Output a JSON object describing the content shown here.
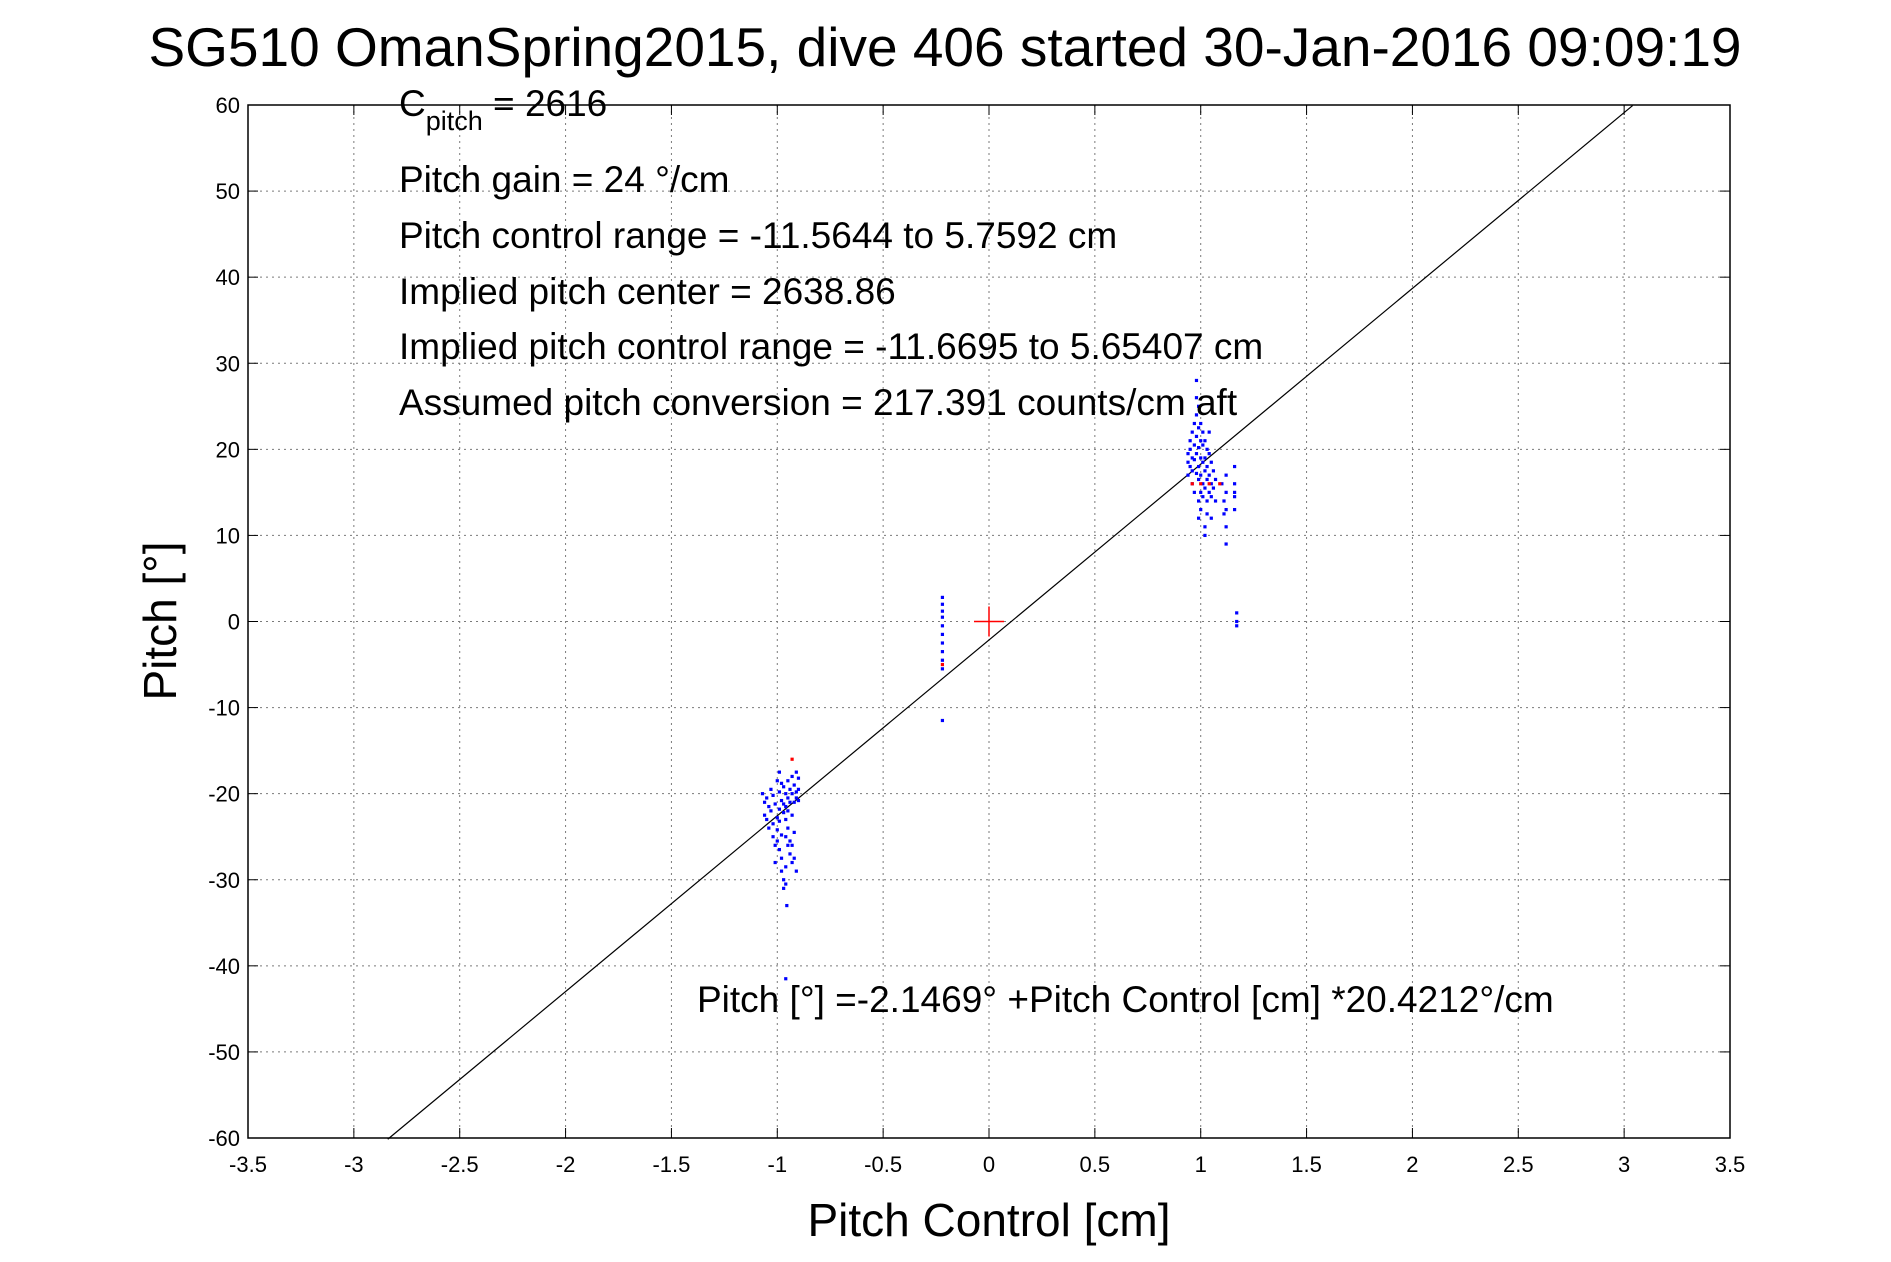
{
  "chart_data": {
    "type": "scatter",
    "title": "SG510 OmanSpring2015, dive 406 started 30-Jan-2016 09:09:19",
    "xlabel": "Pitch Control [cm]",
    "ylabel": "Pitch [°]",
    "xlim": [
      -3.5,
      3.5
    ],
    "ylim": [
      -60,
      60
    ],
    "xticks": [
      -3.5,
      -3,
      -2.5,
      -2,
      -1.5,
      -1,
      -0.5,
      0,
      0.5,
      1,
      1.5,
      2,
      2.5,
      3,
      3.5
    ],
    "xtick_labels": [
      "-3.5",
      "-3",
      "-2.5",
      "-2",
      "-1.5",
      "-1",
      "-0.5",
      "0",
      "0.5",
      "1",
      "1.5",
      "2",
      "2.5",
      "3",
      "3.5"
    ],
    "yticks": [
      -60,
      -50,
      -40,
      -30,
      -20,
      -10,
      0,
      10,
      20,
      30,
      40,
      50,
      60
    ],
    "ytick_labels": [
      "-60",
      "-50",
      "-40",
      "-30",
      "-20",
      "-10",
      "0",
      "10",
      "20",
      "30",
      "40",
      "50",
      "60"
    ],
    "grid": true,
    "annotations": {
      "cpitch": {
        "base": "C",
        "sub": "pitch",
        "rest": " = 2616"
      },
      "lines": [
        "Pitch gain = 24 °/cm",
        "Pitch control range = -11.5644 to 5.7592 cm",
        "Implied pitch center = 2638.86",
        "Implied pitch control range = -11.6695 to 5.65407 cm",
        "Assumed pitch conversion = 217.391 counts/cm aft"
      ],
      "fit_label": "Pitch [°] =-2.1469° +Pitch Control [cm] *20.4212°/cm"
    },
    "fit_line": {
      "intercept": -2.1469,
      "slope": 20.4212,
      "x_range": [
        -2.84,
        3.04
      ],
      "color": "#000000"
    },
    "center_marker": {
      "x": 0,
      "y": 0,
      "color": "#ff0000",
      "marker": "+"
    },
    "series": [
      {
        "color": "#0000ff",
        "marker": "dot",
        "points": [
          [
            -1.07,
            -20
          ],
          [
            -1.06,
            -21
          ],
          [
            -1.06,
            -22.5
          ],
          [
            -1.05,
            -23
          ],
          [
            -1.05,
            -20.5
          ],
          [
            -1.04,
            -21.5
          ],
          [
            -1.04,
            -24
          ],
          [
            -1.03,
            -19.5
          ],
          [
            -1.03,
            -22
          ],
          [
            -1.02,
            -23.5
          ],
          [
            -1.02,
            -25
          ],
          [
            -1.02,
            -20.2
          ],
          [
            -1.01,
            -21.2
          ],
          [
            -1.01,
            -26
          ],
          [
            -1.01,
            -28
          ],
          [
            -1.0,
            -18.5
          ],
          [
            -1.0,
            -22.8
          ],
          [
            -1.0,
            -25.5
          ],
          [
            -1.0,
            -24.2
          ],
          [
            -0.99,
            -17.5
          ],
          [
            -0.99,
            -19.8
          ],
          [
            -0.99,
            -21.8
          ],
          [
            -0.99,
            -23.2
          ],
          [
            -0.99,
            -26.5
          ],
          [
            -0.98,
            -18.8
          ],
          [
            -0.98,
            -20.8
          ],
          [
            -0.98,
            -24.8
          ],
          [
            -0.98,
            -27.5
          ],
          [
            -0.98,
            -29
          ],
          [
            -0.97,
            -19.2
          ],
          [
            -0.97,
            -21.2
          ],
          [
            -0.97,
            -22.2
          ],
          [
            -0.97,
            -30
          ],
          [
            -0.97,
            -31
          ],
          [
            -0.96,
            -20
          ],
          [
            -0.96,
            -21.5
          ],
          [
            -0.96,
            -23
          ],
          [
            -0.96,
            -25
          ],
          [
            -0.96,
            -28.5
          ],
          [
            -0.96,
            -30.5
          ],
          [
            -0.955,
            -33
          ],
          [
            -0.95,
            -18.5
          ],
          [
            -0.95,
            -20.5
          ],
          [
            -0.95,
            -22
          ],
          [
            -0.95,
            -24
          ],
          [
            -0.95,
            -26
          ],
          [
            -0.94,
            -19.5
          ],
          [
            -0.94,
            -21
          ],
          [
            -0.94,
            -25.5
          ],
          [
            -0.94,
            -27
          ],
          [
            -0.93,
            -18
          ],
          [
            -0.93,
            -20
          ],
          [
            -0.93,
            -22.5
          ],
          [
            -0.93,
            -26
          ],
          [
            -0.93,
            -28
          ],
          [
            -0.92,
            -19
          ],
          [
            -0.92,
            -21
          ],
          [
            -0.92,
            -24.5
          ],
          [
            -0.92,
            -27.5
          ],
          [
            -0.91,
            -17.5
          ],
          [
            -0.91,
            -19.8
          ],
          [
            -0.91,
            -20.5
          ],
          [
            -0.91,
            -29
          ],
          [
            -0.9,
            -18.2
          ],
          [
            -0.9,
            -19.5
          ],
          [
            -0.9,
            -20.8
          ],
          [
            -0.96,
            -41.5
          ],
          [
            -0.22,
            2.8
          ],
          [
            -0.22,
            2
          ],
          [
            -0.22,
            1.2
          ],
          [
            -0.22,
            0.5
          ],
          [
            -0.22,
            -0.5
          ],
          [
            -0.22,
            -1.5
          ],
          [
            -0.22,
            -2.5
          ],
          [
            -0.22,
            -3.5
          ],
          [
            -0.22,
            -4.5
          ],
          [
            -0.22,
            -5.5
          ],
          [
            -0.22,
            -11.5
          ],
          [
            0.94,
            17
          ],
          [
            0.94,
            18.5
          ],
          [
            0.94,
            19.5
          ],
          [
            0.95,
            20
          ],
          [
            0.95,
            18
          ],
          [
            0.95,
            21
          ],
          [
            0.96,
            22
          ],
          [
            0.96,
            19
          ],
          [
            0.96,
            17.5
          ],
          [
            0.96,
            16
          ],
          [
            0.97,
            23
          ],
          [
            0.97,
            20.5
          ],
          [
            0.97,
            18.8
          ],
          [
            0.97,
            15
          ],
          [
            0.98,
            24
          ],
          [
            0.98,
            26
          ],
          [
            0.98,
            28
          ],
          [
            0.98,
            21.5
          ],
          [
            0.98,
            19.5
          ],
          [
            0.98,
            17.2
          ],
          [
            0.99,
            25
          ],
          [
            0.99,
            22.5
          ],
          [
            0.99,
            20.2
          ],
          [
            0.99,
            18
          ],
          [
            0.99,
            16.5
          ],
          [
            0.99,
            14
          ],
          [
            0.99,
            12
          ],
          [
            1.0,
            23
          ],
          [
            1.0,
            21
          ],
          [
            1.0,
            19
          ],
          [
            1.0,
            17
          ],
          [
            1.0,
            15
          ],
          [
            1.0,
            13
          ],
          [
            1.01,
            22
          ],
          [
            1.01,
            20.5
          ],
          [
            1.01,
            18.5
          ],
          [
            1.01,
            16
          ],
          [
            1.01,
            14.5
          ],
          [
            1.02,
            21
          ],
          [
            1.02,
            19
          ],
          [
            1.02,
            17.5
          ],
          [
            1.02,
            15.5
          ],
          [
            1.02,
            10
          ],
          [
            1.02,
            11
          ],
          [
            1.03,
            20
          ],
          [
            1.03,
            18
          ],
          [
            1.03,
            16.5
          ],
          [
            1.03,
            14
          ],
          [
            1.03,
            12.5
          ],
          [
            1.04,
            22
          ],
          [
            1.04,
            19.5
          ],
          [
            1.04,
            17
          ],
          [
            1.04,
            15
          ],
          [
            1.05,
            18.5
          ],
          [
            1.05,
            16
          ],
          [
            1.05,
            14.5
          ],
          [
            1.05,
            12
          ],
          [
            1.06,
            17.5
          ],
          [
            1.06,
            15.5
          ],
          [
            1.07,
            16.5
          ],
          [
            1.07,
            14
          ],
          [
            1.1,
            16
          ],
          [
            1.11,
            14
          ],
          [
            1.11,
            12.5
          ],
          [
            1.12,
            17
          ],
          [
            1.12,
            15
          ],
          [
            1.12,
            13
          ],
          [
            1.12,
            11
          ],
          [
            1.12,
            9
          ],
          [
            1.16,
            18
          ],
          [
            1.16,
            16
          ],
          [
            1.16,
            14.5
          ],
          [
            1.16,
            13
          ],
          [
            1.16,
            15
          ],
          [
            1.17,
            1
          ],
          [
            1.17,
            0
          ],
          [
            1.17,
            -0.5
          ]
        ]
      },
      {
        "color": "#ff0000",
        "marker": "dot",
        "points": [
          [
            -0.93,
            -16
          ],
          [
            0.96,
            16
          ],
          [
            1.0,
            16
          ],
          [
            1.04,
            16
          ],
          [
            1.09,
            16
          ],
          [
            -0.22,
            -5
          ]
        ]
      }
    ]
  }
}
